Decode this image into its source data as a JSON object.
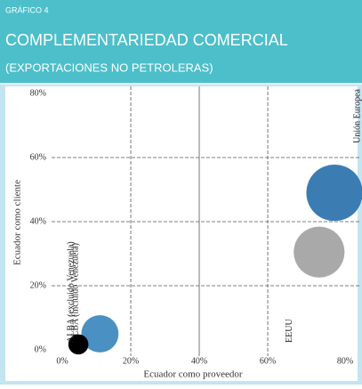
{
  "chart_data": {
    "type": "bubble",
    "kicker": "GRÁFICO 4",
    "title": "COMPLEMENTARIEDAD COMERCIAL",
    "subtitle": "(EXPORTACIONES NO PETROLERAS)",
    "xlabel": "Ecuador como proveedor",
    "ylabel": "Ecuador como cliente",
    "xlim": [
      0,
      87
    ],
    "ylim": [
      0,
      85
    ],
    "xticks": [
      {
        "value": 0,
        "label": "0%"
      },
      {
        "value": 20,
        "label": "20%"
      },
      {
        "value": 40,
        "label": "40%"
      },
      {
        "value": 60,
        "label": "60%"
      },
      {
        "value": 80,
        "label": "80%"
      }
    ],
    "yticks": [
      {
        "value": 0,
        "label": "0%"
      },
      {
        "value": 20,
        "label": "20%"
      },
      {
        "value": 40,
        "label": "40%"
      },
      {
        "value": 60,
        "label": "60%"
      },
      {
        "value": 80,
        "label": "80%"
      }
    ],
    "grid": true,
    "series": [
      {
        "name": "Unión Europea",
        "color": "#3b7db3",
        "x": 79.5,
        "y": 49,
        "size": 32
      },
      {
        "name": "EEUU",
        "color": "#a9a9a9",
        "x": 75,
        "y": 30.5,
        "size": 26
      },
      {
        "name": "ALBA (incluido Venezuela)",
        "color": "#4a90c2",
        "x": 11,
        "y": 5,
        "size": 14
      },
      {
        "name": "ALBA (excluido Venezuela)",
        "color": "#000000",
        "x": 4.7,
        "y": 1.7,
        "size": 4
      }
    ]
  }
}
